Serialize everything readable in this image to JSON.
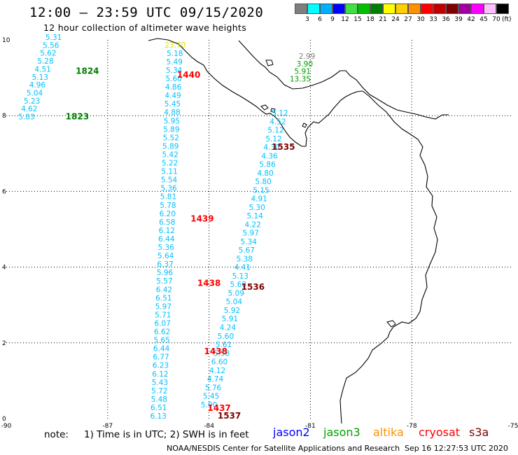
{
  "header": {
    "title": "12:00 – 23:59 UTC 09/15/2020",
    "subtitle": "12 hour collection of altimeter wave heights"
  },
  "color_scale": {
    "unit": "(ft)",
    "bins": [
      {
        "label": "3",
        "color": "#7f7f7f"
      },
      {
        "label": "6",
        "color": "#00ffff"
      },
      {
        "label": "9",
        "color": "#00b0ff"
      },
      {
        "label": "12",
        "color": "#0000ff"
      },
      {
        "label": "15",
        "color": "#40e040"
      },
      {
        "label": "18",
        "color": "#00c000"
      },
      {
        "label": "21",
        "color": "#008000"
      },
      {
        "label": "24",
        "color": "#ffff00"
      },
      {
        "label": "27",
        "color": "#ffd000"
      },
      {
        "label": "30",
        "color": "#ff9000"
      },
      {
        "label": "33",
        "color": "#ff0000"
      },
      {
        "label": "36",
        "color": "#c00000"
      },
      {
        "label": "39",
        "color": "#800000"
      },
      {
        "label": "42",
        "color": "#a000a0"
      },
      {
        "label": "45",
        "color": "#ff00ff"
      },
      {
        "label": "70",
        "color": "#ffc0ff"
      },
      {
        "label": "",
        "color": "#000000"
      }
    ]
  },
  "map": {
    "lon_range": [
      -90,
      -75
    ],
    "lat_range": [
      0,
      10
    ],
    "lon_ticks": [
      "-90",
      "-87",
      "-84",
      "-81",
      "-78",
      "-75"
    ],
    "lat_ticks": [
      "0",
      "2",
      "4",
      "6",
      "8",
      "10"
    ],
    "track_colors": {
      "cyan": "#00c0ff",
      "green": "#00a000",
      "yellow": "#e0e000",
      "gray": "#808080"
    },
    "passes": [
      {
        "label": "1824",
        "lon": -87.6,
        "lat": 9.1,
        "color": "#008000"
      },
      {
        "label": "1823",
        "lon": -87.9,
        "lat": 7.9,
        "color": "#008000"
      },
      {
        "label": "1440",
        "lon": -84.6,
        "lat": 9.0,
        "color": "#ff0000"
      },
      {
        "label": "1535",
        "lon": -81.8,
        "lat": 7.1,
        "color": "#800000"
      },
      {
        "label": "1439",
        "lon": -84.2,
        "lat": 5.2,
        "color": "#ff0000"
      },
      {
        "label": "1438",
        "lon": -84.0,
        "lat": 3.5,
        "color": "#ff0000"
      },
      {
        "label": "1536",
        "lon": -82.7,
        "lat": 3.4,
        "color": "#800000"
      },
      {
        "label": "1438",
        "lon": -83.8,
        "lat": 1.7,
        "color": "#ff0000"
      },
      {
        "label": "1437",
        "lon": -83.7,
        "lat": 0.2,
        "color": "#ff0000"
      },
      {
        "label": "1537",
        "lon": -83.4,
        "lat": 0.0,
        "color": "#800000"
      }
    ],
    "tracks": [
      {
        "name": "track-1823",
        "color": "#00c0ff",
        "start": [
          -88.6,
          10.0
        ],
        "end": [
          -89.4,
          7.9
        ],
        "values": [
          "5.31",
          "5.56",
          "5.62",
          "5.28",
          "4.51",
          "5.13",
          "4.96",
          "5.04",
          "5.23",
          "4.62",
          "5.83"
        ]
      },
      {
        "name": "track-1440",
        "color": "#00c0ff",
        "start": [
          -85.0,
          9.8
        ],
        "end": [
          -85.5,
          0.0
        ],
        "values": [
          "23.70",
          "5.18",
          "5.49",
          "5.34",
          "5.60",
          "4.86",
          "4.49",
          "5.45",
          "4.88",
          "5.95",
          "5.89",
          "5.52",
          "5.89",
          "5.42",
          "5.22",
          "5.11",
          "5.54",
          "5.36",
          "5.81",
          "5.78",
          "6.20",
          "6.58",
          "6.12",
          "6.44",
          "5.36",
          "5.64",
          "6.37",
          "5.96",
          "5.57",
          "6.42",
          "6.51",
          "5.97",
          "5.71",
          "6.07",
          "6.62",
          "5.65",
          "6.44",
          "6.77",
          "6.23",
          "6.12",
          "5.43",
          "5.72",
          "5.48",
          "6.51",
          "6.13"
        ]
      },
      {
        "name": "track-1535",
        "color": "#00c0ff",
        "start": [
          -81.9,
          8.0
        ],
        "end": [
          -84.0,
          0.3
        ],
        "values": [
          "5.12",
          "4.52",
          "5.12",
          "5.12",
          "4.30",
          "4.36",
          "5.86",
          "4.80",
          "5.80",
          "5.15",
          "4.91",
          "5.30",
          "5.14",
          "4.22",
          "5.97",
          "5.34",
          "5.67",
          "5.38",
          "4.41",
          "5.13",
          "5.60",
          "5.09",
          "5.04",
          "5.92",
          "5.91",
          "4.24",
          "5.60",
          "5.61",
          "5.58",
          "6.60",
          "4.12",
          "4.74",
          "5.76",
          "5.45",
          "5.90"
        ]
      },
      {
        "name": "track-jason3-north",
        "color": "#808080",
        "start": [
          -81.1,
          9.5
        ],
        "end": [
          -81.3,
          8.9
        ],
        "values": [
          "2.99",
          "3.90",
          "5.91",
          "13.35"
        ]
      }
    ]
  },
  "footer": {
    "note_label": "note:",
    "note_text": "1) Time is in UTC; 2) SWH is in feet",
    "satellites": [
      {
        "name": "jason2",
        "color": "#0000ff"
      },
      {
        "name": "jason3",
        "color": "#00a000"
      },
      {
        "name": "altika",
        "color": "#ff9000"
      },
      {
        "name": "cryosat",
        "color": "#ff0000"
      },
      {
        "name": "s3a",
        "color": "#800000"
      }
    ],
    "credit": "NOAA/NESDIS Center for Satellite Applications and Research",
    "timestamp": "Sep 16 12:27:53 UTC 2020"
  }
}
